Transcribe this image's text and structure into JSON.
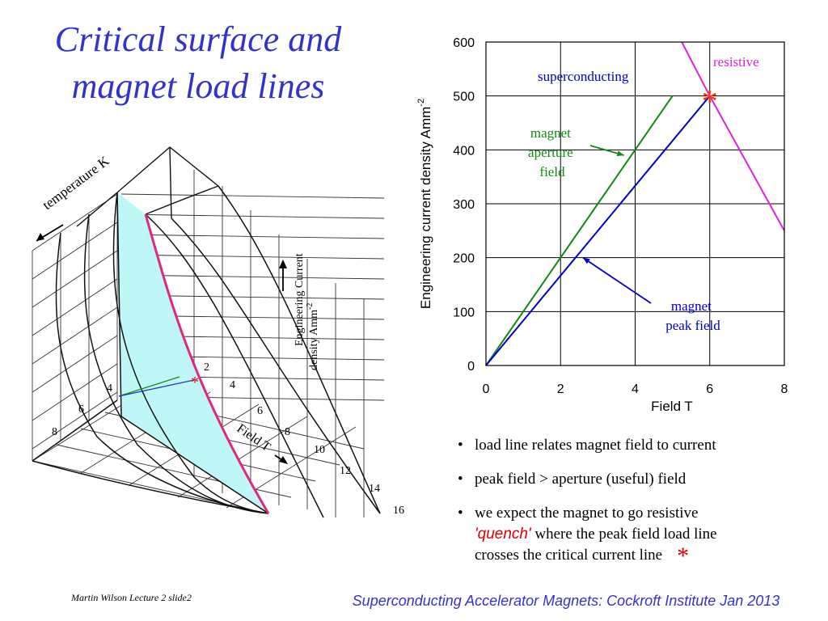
{
  "title": {
    "line1": "Critical surface and",
    "line2": "magnet load lines"
  },
  "surface_figure": {
    "temperature_label": "temperature K",
    "current_label_line1": "Engineering Current",
    "current_label_line2": "density Amm",
    "current_label_exp": "-2",
    "field_label": "Field T",
    "temperature_ticks": [
      "8",
      "6",
      "4"
    ],
    "field_ticks": [
      "2",
      "4",
      "6",
      "8",
      "10",
      "12",
      "14",
      "16"
    ],
    "quench_marker": "*",
    "colors": {
      "surface_fill": "#bff7f7",
      "critical_line": "#e0287a",
      "load_green": "#1a8c1a",
      "load_blue": "#2233cc"
    }
  },
  "chart_data": {
    "type": "line",
    "xlabel": "Field T",
    "ylabel": "Engineering current density Amm",
    "ylabel_exp": "-2",
    "xlim": [
      0,
      8
    ],
    "ylim": [
      0,
      600
    ],
    "xticks": [
      0,
      2,
      4,
      6,
      8
    ],
    "yticks": [
      0,
      100,
      200,
      300,
      400,
      500,
      600
    ],
    "grid": true,
    "series": [
      {
        "name": "magnet aperture field",
        "color": "#118811",
        "points": [
          [
            0,
            0
          ],
          [
            5,
            500
          ]
        ]
      },
      {
        "name": "magnet peak field",
        "color": "#0000cc",
        "points": [
          [
            0,
            0
          ],
          [
            6,
            500
          ]
        ]
      },
      {
        "name": "",
        "color": "#dd22dd",
        "points": [
          [
            5.25,
            600
          ],
          [
            6,
            500
          ],
          [
            8,
            250
          ]
        ]
      }
    ],
    "annotations": [
      {
        "text": "superconducting",
        "color": "#0000cc"
      },
      {
        "text": "resistive",
        "color": "#dd22dd"
      },
      {
        "lines": [
          "magnet",
          "aperture",
          "field"
        ],
        "color": "#118811",
        "arrow_to": [
          3.7,
          390
        ]
      },
      {
        "lines": [
          "magnet",
          "peak field"
        ],
        "color": "#0000cc",
        "arrow_to": [
          2.6,
          200
        ]
      }
    ],
    "quench_point": {
      "x": 6,
      "y": 500,
      "symbol": "*",
      "color": "#ff3300"
    }
  },
  "bullets": {
    "item1": "load line relates magnet field to current",
    "item2": "peak field > aperture (useful) field",
    "item3_line1": "we expect the magnet to go resistive",
    "item3_quench": "'quench'",
    "item3_line2": " where the peak field load line",
    "item3_line3": "crosses the critical current line",
    "star": "*"
  },
  "footer": {
    "left": "Martin Wilson Lecture 2 slide2",
    "right": "Superconducting Accelerator Magnets:  Cockroft Institute Jan 2013"
  }
}
